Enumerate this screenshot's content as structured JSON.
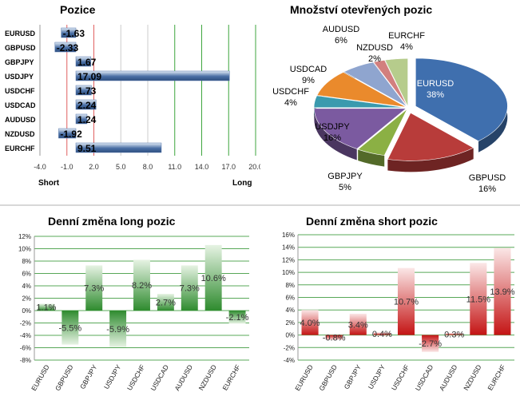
{
  "charts": {
    "positions": {
      "title": "Pozice",
      "type": "bar",
      "categories": [
        "EURUSD",
        "GBPUSD",
        "GBPJPY",
        "USDJPY",
        "USDCHF",
        "USDCAD",
        "AUDUSD",
        "NZDUSD",
        "EURCHF"
      ],
      "values": [
        -1.63,
        -2.33,
        1.67,
        17.09,
        1.73,
        2.24,
        1.24,
        -1.92,
        9.51
      ],
      "value_labels": [
        "-1.63",
        "-2.33",
        "1.67",
        "17.09",
        "1.73",
        "2.24",
        "1.24",
        "-1.92",
        "9.51"
      ],
      "xticks": [
        "-4.0",
        "-1.0",
        "2.0",
        "5.0",
        "8.0",
        "11.0",
        "14.0",
        "17.0",
        "20.0"
      ],
      "xlim": [
        -4,
        20
      ],
      "short_label": "Short",
      "long_label": "Long",
      "colors": {
        "bar_dark": "#4a6fa5",
        "bar_light": "#e3ecf7",
        "red_line": "#e06060",
        "green_line": "#3fa53f"
      }
    },
    "open_positions": {
      "title": "Množství otevřených pozic",
      "type": "pie",
      "slices": [
        {
          "label": "EURUSD",
          "pct_label": "38%",
          "value": 38,
          "color": "#3f6fae"
        },
        {
          "label": "GBPUSD",
          "pct_label": "16%",
          "value": 16,
          "color": "#b83c3a"
        },
        {
          "label": "GBPJPY",
          "pct_label": "5%",
          "value": 5,
          "color": "#8bb044"
        },
        {
          "label": "USDJPY",
          "pct_label": "16%",
          "value": 16,
          "color": "#7b5aa0"
        },
        {
          "label": "USDCHF",
          "pct_label": "4%",
          "value": 4,
          "color": "#3a9aae"
        },
        {
          "label": "USDCAD",
          "pct_label": "9%",
          "value": 9,
          "color": "#ea8a2c"
        },
        {
          "label": "AUDUSD",
          "pct_label": "6%",
          "value": 6,
          "color": "#8fa5cf"
        },
        {
          "label": "NZDUSD",
          "pct_label": "2%",
          "value": 2,
          "color": "#d27f7e"
        },
        {
          "label": "EURCHF",
          "pct_label": "4%",
          "value": 4,
          "color": "#b6cc8c"
        }
      ]
    },
    "long_change": {
      "title": "Denní změna long pozic",
      "type": "bar",
      "categories": [
        "EURUSD",
        "GBPUSD",
        "GBPJPY",
        "USDJPY",
        "USDCHF",
        "USDCAD",
        "AUDUSD",
        "NZDUSD",
        "EURCHF"
      ],
      "values": [
        1.1,
        -5.5,
        7.3,
        -5.9,
        8.2,
        2.7,
        7.3,
        10.6,
        -2.1
      ],
      "value_labels": [
        "1.1%",
        "-5.5%",
        "7.3%",
        "-5.9%",
        "8.2%",
        "2.7%",
        "7.3%",
        "10.6%",
        "-2.1%"
      ],
      "yticks": [
        "12%",
        "10%",
        "8%",
        "6%",
        "4%",
        "2%",
        "0%",
        "-2%",
        "-4%",
        "-6%",
        "-8%"
      ],
      "ylim": [
        -8,
        12
      ],
      "colors": {
        "bar": "#2e8b2e",
        "bar_light": "#e6f3e3",
        "grid": "#58a858"
      }
    },
    "short_change": {
      "title": "Denní změna short pozic",
      "type": "bar",
      "categories": [
        "EURUSD",
        "GBPUSD",
        "GBPJPY",
        "USDJPY",
        "USDCHF",
        "USDCAD",
        "AUDUSD",
        "NZDUSD",
        "EURCHF"
      ],
      "values": [
        4.0,
        -0.8,
        3.4,
        0.4,
        10.7,
        -2.7,
        0.3,
        11.5,
        13.9
      ],
      "value_labels": [
        "4.0%",
        "-0.8%",
        "3.4%",
        "0.4%",
        "10.7%",
        "-2.7%",
        "0.3%",
        "11.5%",
        "13.9%"
      ],
      "yticks": [
        "16%",
        "14%",
        "12%",
        "10%",
        "8%",
        "6%",
        "4%",
        "2%",
        "0%",
        "-2%",
        "-4%"
      ],
      "ylim": [
        -4,
        16
      ],
      "colors": {
        "bar": "#c41414",
        "bar_light": "#fbe7e7",
        "grid": "#58a858"
      }
    }
  }
}
